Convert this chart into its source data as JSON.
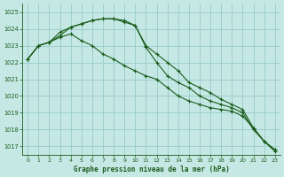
{
  "title": "Graphe pression niveau de la mer (hPa)",
  "background_color": "#c5e8e5",
  "grid_color": "#9dcfcc",
  "line_color": "#1a5c1a",
  "xlim": [
    -0.5,
    23.5
  ],
  "ylim": [
    1016.5,
    1025.5
  ],
  "yticks": [
    1017,
    1018,
    1019,
    1020,
    1021,
    1022,
    1023,
    1024,
    1025
  ],
  "xticks": [
    0,
    1,
    2,
    3,
    4,
    5,
    6,
    7,
    8,
    9,
    10,
    11,
    12,
    13,
    14,
    15,
    16,
    17,
    18,
    19,
    20,
    21,
    22,
    23
  ],
  "series": [
    [
      1022.2,
      1023.0,
      1023.2,
      1023.8,
      1024.1,
      1024.3,
      1024.5,
      1024.6,
      1024.6,
      1024.5,
      1024.2,
      1023.0,
      1022.5,
      1022.0,
      1021.5,
      1020.8,
      1020.5,
      1020.2,
      1019.8,
      1019.5,
      1019.2,
      1018.1,
      1017.3,
      1016.8
    ],
    [
      1022.2,
      1023.0,
      1023.2,
      1023.5,
      1023.7,
      1023.3,
      1023.0,
      1022.5,
      1022.2,
      1021.8,
      1021.5,
      1021.2,
      1021.0,
      1020.5,
      1020.0,
      1019.7,
      1019.5,
      1019.3,
      1019.2,
      1019.1,
      1018.8,
      1018.1,
      1017.3,
      1016.8
    ],
    [
      1022.2,
      1023.0,
      1023.2,
      1023.6,
      1024.1,
      1024.3,
      1024.5,
      1024.6,
      1024.6,
      1024.4,
      1024.2,
      1022.9,
      1022.0,
      1021.2,
      1020.8,
      1020.5,
      1020.0,
      1019.7,
      1019.5,
      1019.3,
      1019.0,
      1018.0,
      1017.3,
      1016.7
    ]
  ]
}
